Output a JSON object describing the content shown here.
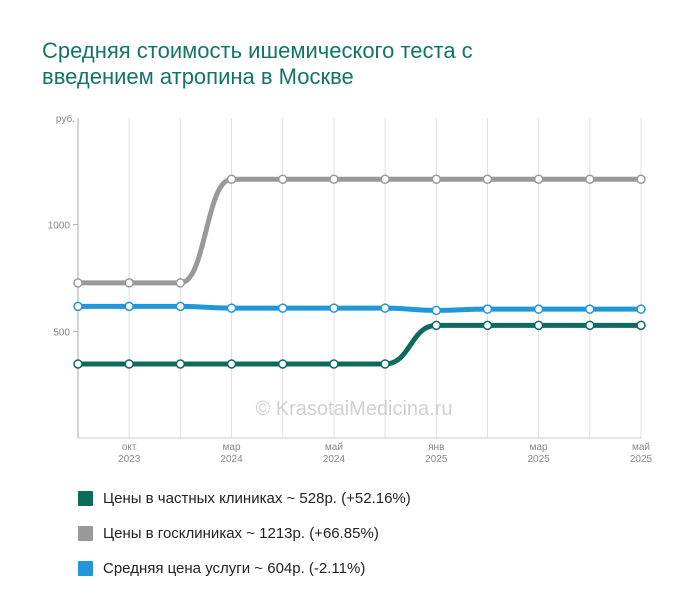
{
  "title_lines": [
    "Средняя стоимость ишемического теста с",
    "введением атропина в Москве"
  ],
  "watermark": "© KrasotaiMedicina.ru",
  "chart_data": {
    "type": "line",
    "ylabel": "руб.",
    "ylim": [
      0,
      1500
    ],
    "yticks": [
      500,
      1000
    ],
    "x": [
      "2023-08",
      "2023-10",
      "2023-12",
      "2024-03",
      "2024-04",
      "2024-05",
      "2024-06",
      "2025-01",
      "2025-02",
      "2025-03",
      "2025-04",
      "2025-05"
    ],
    "xtick_labels": [
      {
        "month": "окт",
        "year": "2023",
        "index": 1
      },
      {
        "month": "мар",
        "year": "2024",
        "index": 3
      },
      {
        "month": "май",
        "year": "2024",
        "index": 5
      },
      {
        "month": "янв",
        "year": "2025",
        "index": 7
      },
      {
        "month": "мар",
        "year": "2025",
        "index": 9
      },
      {
        "month": "май",
        "year": "2025",
        "index": 11
      }
    ],
    "series": [
      {
        "name": "Цены в частных клиниках ~ 528р. (+52.16%)",
        "color": "#0d6b5c",
        "values": [
          347,
          347,
          347,
          347,
          347,
          347,
          347,
          528,
          528,
          528,
          528,
          528
        ]
      },
      {
        "name": "Цены в госклиниках ~ 1213р. (+66.85%)",
        "color": "#999999",
        "values": [
          727,
          727,
          727,
          1213,
          1213,
          1213,
          1213,
          1213,
          1213,
          1213,
          1213,
          1213
        ]
      },
      {
        "name": "Средняя цена услуги ~ 604р. (-2.11%)",
        "color": "#2196d8",
        "values": [
          617,
          617,
          617,
          609,
          609,
          609,
          609,
          598,
          604,
          604,
          604,
          604
        ]
      }
    ],
    "grid": true,
    "legend": "bottom"
  }
}
